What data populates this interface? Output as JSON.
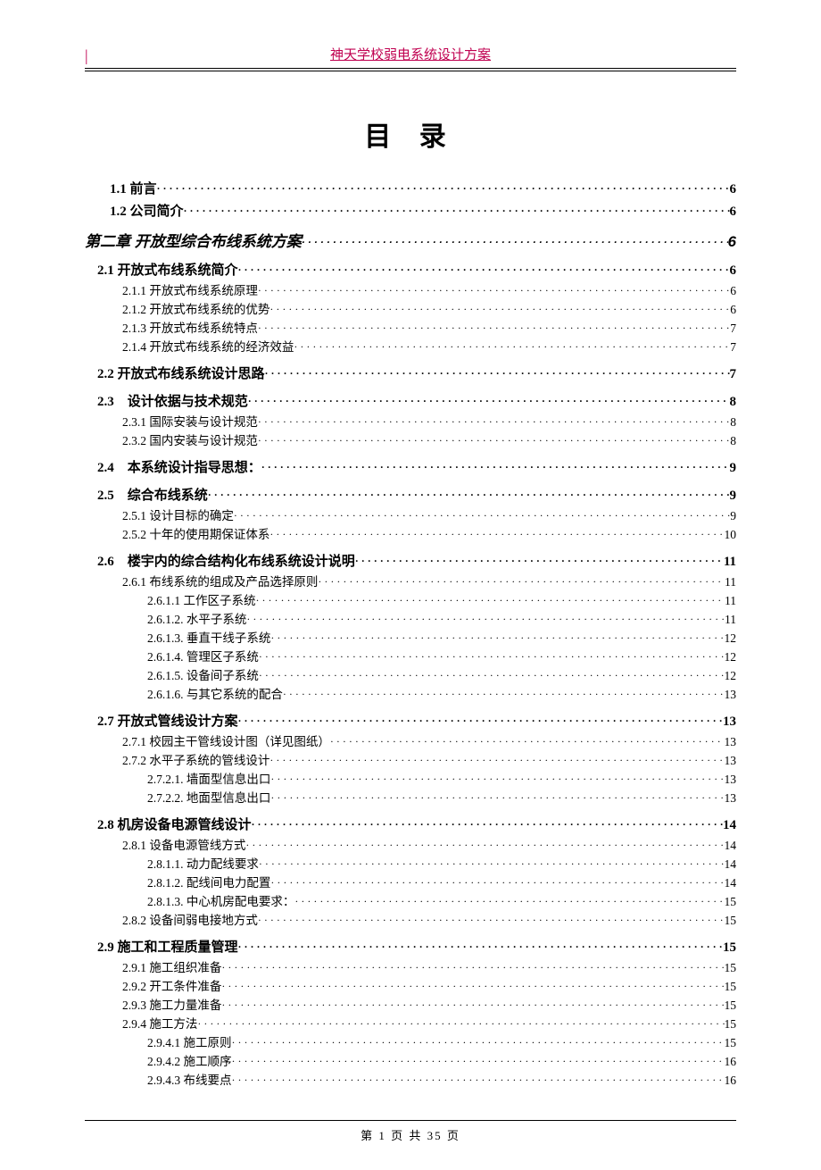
{
  "header": {
    "cursor_mark": "|",
    "title_link": "神天学校弱电系统设计方案"
  },
  "main_title": "目 录",
  "colors": {
    "link": "#c00050",
    "text": "#000000",
    "background": "#ffffff"
  },
  "toc": [
    {
      "level": "level-1",
      "label": "1.1 前言",
      "page": "6"
    },
    {
      "level": "level-1",
      "label": "1.2 公司简介",
      "page": "6"
    },
    {
      "level": "chapter",
      "label": "第二章 开放型综合布线系统方案",
      "page": "6"
    },
    {
      "level": "level-2",
      "label": "2.1 开放式布线系统简介",
      "page": "6"
    },
    {
      "level": "level-3",
      "label": "2.1.1 开放式布线系统原理",
      "page": "6"
    },
    {
      "level": "level-3",
      "label": "2.1.2 开放式布线系统的优势",
      "page": "6"
    },
    {
      "level": "level-3",
      "label": "2.1.3 开放式布线系统特点",
      "page": "7"
    },
    {
      "level": "level-3",
      "label": "2.1.4 开放式布线系统的经济效益",
      "page": "7"
    },
    {
      "level": "level-2",
      "label": "2.2 开放式布线系统设计思路",
      "page": "7"
    },
    {
      "level": "level-2",
      "label": "2.3　设计依据与技术规范",
      "page": "8"
    },
    {
      "level": "level-3",
      "label": "2.3.1 国际安装与设计规范",
      "page": "8"
    },
    {
      "level": "level-3",
      "label": "2.3.2 国内安装与设计规范",
      "page": "8"
    },
    {
      "level": "level-2",
      "label": "2.4　本系统设计指导思想：",
      "page": "9"
    },
    {
      "level": "level-2",
      "label": "2.5　综合布线系统",
      "page": "9"
    },
    {
      "level": "level-3",
      "label": "2.5.1 设计目标的确定",
      "page": "9"
    },
    {
      "level": "level-3",
      "label": "2.5.2 十年的使用期保证体系",
      "page": "10"
    },
    {
      "level": "level-2",
      "label": "2.6　楼宇内的综合结构化布线系统设计说明",
      "page": "11"
    },
    {
      "level": "level-3",
      "label": "2.6.1 布线系统的组成及产品选择原则",
      "page": "11"
    },
    {
      "level": "level-4",
      "label": "2.6.1.1 工作区子系统",
      "page": "11"
    },
    {
      "level": "level-4",
      "label": "2.6.1.2. 水平子系统",
      "page": "11"
    },
    {
      "level": "level-4",
      "label": "2.6.1.3. 垂直干线子系统",
      "page": "12"
    },
    {
      "level": "level-4",
      "label": "2.6.1.4. 管理区子系统",
      "page": "12"
    },
    {
      "level": "level-4",
      "label": "2.6.1.5. 设备间子系统",
      "page": "12"
    },
    {
      "level": "level-4",
      "label": "2.6.1.6. 与其它系统的配合",
      "page": "13"
    },
    {
      "level": "level-2",
      "label": "2.7 开放式管线设计方案",
      "page": "13"
    },
    {
      "level": "level-3",
      "label": "2.7.1 校园主干管线设计图（详见图纸）",
      "page": "13"
    },
    {
      "level": "level-3",
      "label": "2.7.2 水平子系统的管线设计",
      "page": "13"
    },
    {
      "level": "level-4",
      "label": "2.7.2.1. 墙面型信息出口",
      "page": "13"
    },
    {
      "level": "level-4",
      "label": "2.7.2.2. 地面型信息出口",
      "page": "13"
    },
    {
      "level": "level-2",
      "label": "2.8 机房设备电源管线设计",
      "page": "14"
    },
    {
      "level": "level-3",
      "label": "2.8.1 设备电源管线方式",
      "page": "14"
    },
    {
      "level": "level-4",
      "label": "2.8.1.1. 动力配线要求",
      "page": "14"
    },
    {
      "level": "level-4",
      "label": "2.8.1.2. 配线间电力配置",
      "page": "14"
    },
    {
      "level": "level-4",
      "label": "2.8.1.3. 中心机房配电要求：",
      "page": "15"
    },
    {
      "level": "level-3",
      "label": "2.8.2 设备间弱电接地方式",
      "page": "15"
    },
    {
      "level": "level-2",
      "label": "2.9 施工和工程质量管理",
      "page": "15"
    },
    {
      "level": "level-3",
      "label": "2.9.1 施工组织准备",
      "page": "15"
    },
    {
      "level": "level-3",
      "label": "2.9.2 开工条件准备",
      "page": "15"
    },
    {
      "level": "level-3",
      "label": "2.9.3 施工力量准备",
      "page": "15"
    },
    {
      "level": "level-3",
      "label": "2.9.4 施工方法",
      "page": "15"
    },
    {
      "level": "level-4",
      "label": "2.9.4.1 施工原则",
      "page": "15"
    },
    {
      "level": "level-4",
      "label": "2.9.4.2 施工顺序",
      "page": "16"
    },
    {
      "level": "level-4",
      "label": "2.9.4.3 布线要点",
      "page": "16"
    }
  ],
  "footer": {
    "text": "第 1 页 共 35 页"
  }
}
